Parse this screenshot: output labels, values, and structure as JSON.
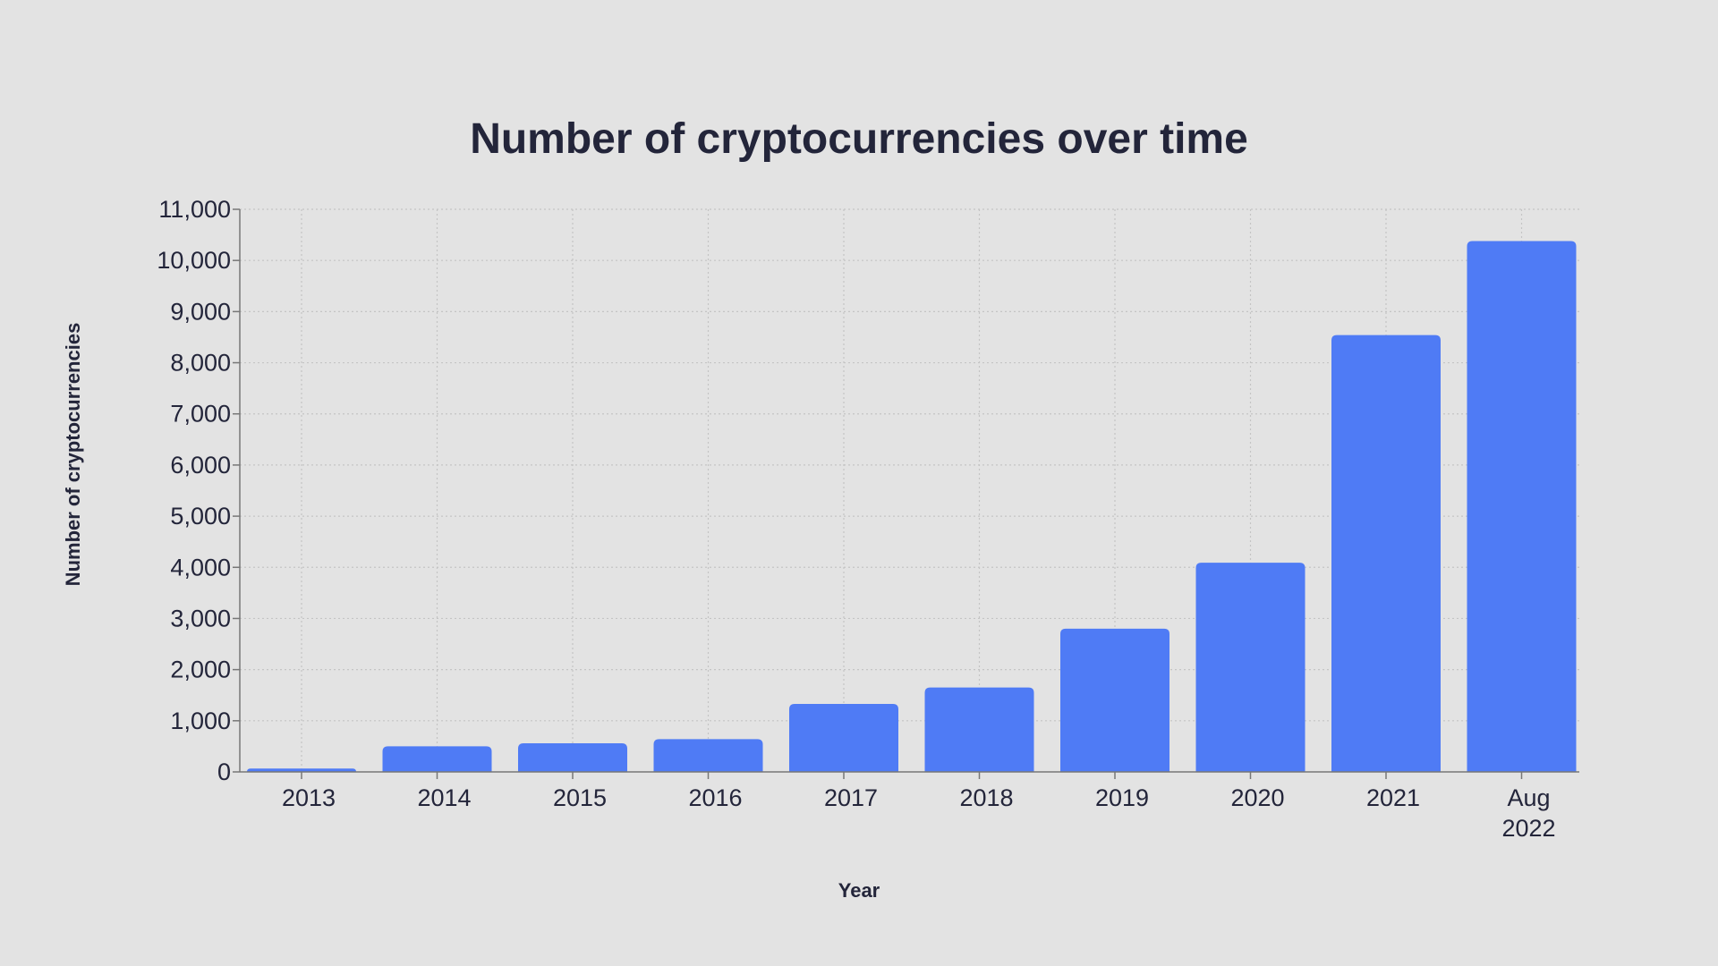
{
  "chart_data": {
    "type": "bar",
    "title": "Number of cryptocurrencies over time",
    "xlabel": "Year",
    "ylabel": "Number of cryptocurrencies",
    "categories": [
      "2013",
      "2014",
      "2015",
      "2016",
      "2017",
      "2018",
      "2019",
      "2020",
      "2021",
      "Aug 2022"
    ],
    "values": [
      66,
      500,
      560,
      640,
      1330,
      1650,
      2800,
      4090,
      8540,
      10380
    ],
    "ylim": [
      0,
      11000
    ],
    "yticks": [
      0,
      1000,
      2000,
      3000,
      4000,
      5000,
      6000,
      7000,
      8000,
      9000,
      10000,
      11000
    ],
    "grid": true,
    "legend": "none",
    "colors": {
      "bar": "#4f7bf5",
      "background": "#e3e3e3",
      "text": "#23253a",
      "grid": "#c4c4c4"
    }
  }
}
